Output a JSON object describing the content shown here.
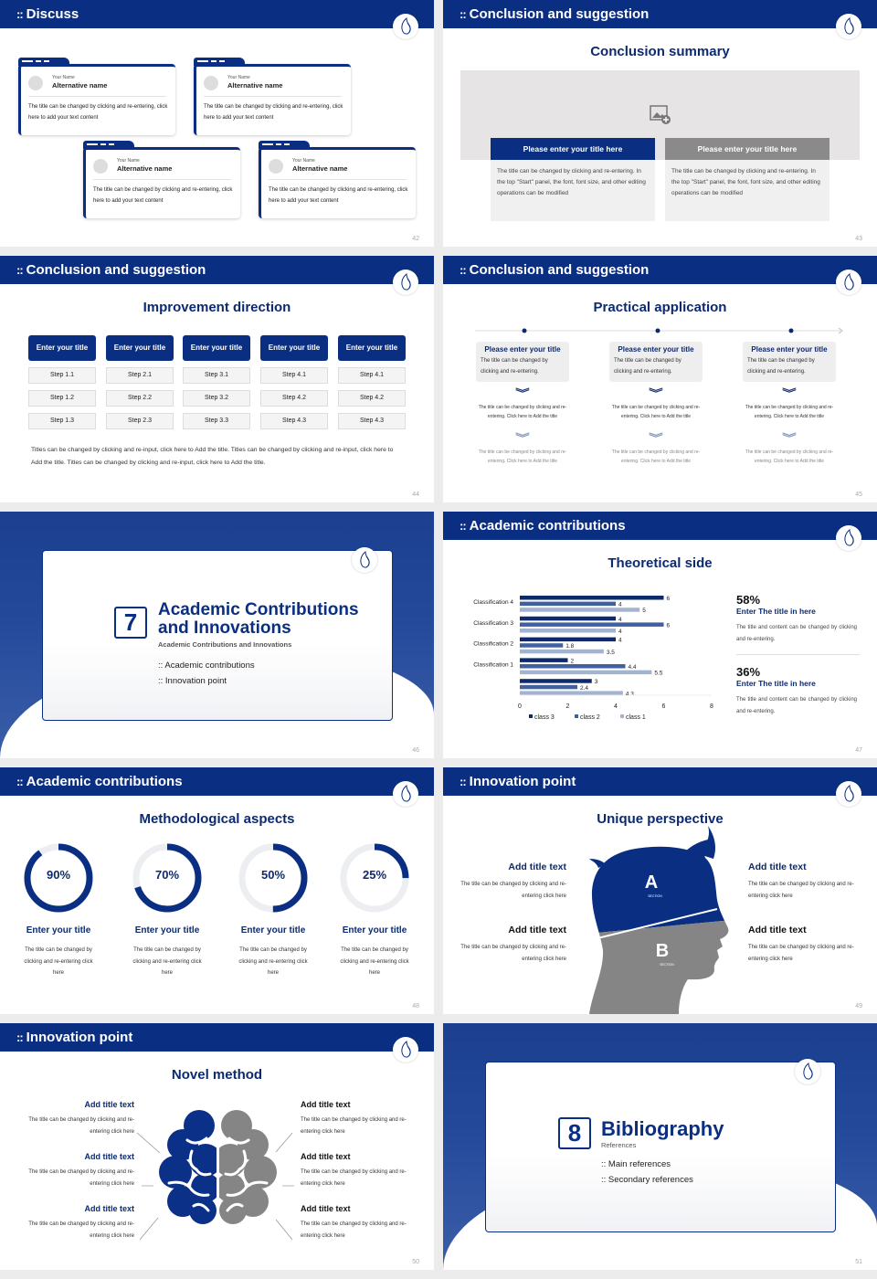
{
  "colors": {
    "primary": "#0a2f82",
    "gray": "#888888",
    "light": "#eeeeee"
  },
  "bullet_glyph": "::",
  "slides": {
    "s42": {
      "header": "Discuss",
      "page": "42",
      "cards": [
        {
          "name_label": "Your Name",
          "alt_name": "Alternative name",
          "text": "The title can be changed by clicking and re-entering, click here to add your text content"
        },
        {
          "name_label": "Your Name",
          "alt_name": "Alternative name",
          "text": "The title can be changed by clicking and re-entering, click here to add your text content"
        },
        {
          "name_label": "Your Name",
          "alt_name": "Alternative name",
          "text": "The title can be changed by clicking and re-entering, click here to add your text content"
        },
        {
          "name_label": "Your Name",
          "alt_name": "Alternative name",
          "text": "The title can be changed by clicking and re-entering, click here to add your text content"
        }
      ]
    },
    "s43": {
      "header": "Conclusion and suggestion",
      "title": "Conclusion summary",
      "page": "43",
      "image_icon": "image-placeholder-icon",
      "panels": [
        {
          "title": "Please enter your title here",
          "text": "The title can be changed by clicking and re-entering. In the top \"Start\" panel, the font, font size, and other editing operations can be modified"
        },
        {
          "title": "Please enter your title here",
          "text": "The title can be changed by clicking and re-entering. In the top \"Start\" panel, the font, font size, and other editing operations can be modified"
        }
      ]
    },
    "s44": {
      "header": "Conclusion and suggestion",
      "title": "Improvement direction",
      "page": "44",
      "columns": [
        {
          "title": "Enter your title",
          "steps": [
            "Step 1.1",
            "Step 1.2",
            "Step 1.3"
          ]
        },
        {
          "title": "Enter your title",
          "steps": [
            "Step 2.1",
            "Step 2.2",
            "Step 2.3"
          ]
        },
        {
          "title": "Enter your title",
          "steps": [
            "Step 3.1",
            "Step 3.2",
            "Step 3.3"
          ]
        },
        {
          "title": "Enter your title",
          "steps": [
            "Step 4.1",
            "Step 4.2",
            "Step 4.3"
          ]
        },
        {
          "title": "Enter your title",
          "steps": [
            "Step 4.1",
            "Step 4.2",
            "Step 4.3"
          ]
        }
      ],
      "paragraph": "Titles can be changed by clicking and re-input, click here to Add the title. Titles can be changed by clicking and re-input, click here to Add the title. Titles can be changed by clicking and re-input, click here to Add the title."
    },
    "s45": {
      "header": "Conclusion and suggestion",
      "title": "Practical application",
      "page": "45",
      "items": [
        {
          "title": "Please enter your title",
          "text": "The title can be changed by clicking and re-entering.",
          "step1": "The title can be changed by clicking and re-entering. Click here to Add the title",
          "step2": "The title can be changed by clicking and re-entering. Click here to Add the title"
        },
        {
          "title": "Please enter your title",
          "text": "The title can be changed by clicking and re-entering.",
          "step1": "The title can be changed by clicking and re-entering. Click here to Add the title",
          "step2": "The title can be changed by clicking and re-entering. Click here to Add the title"
        },
        {
          "title": "Please enter your title",
          "text": "The title can be changed by clicking and re-entering.",
          "step1": "The title can be changed by clicking and re-entering. Click here to Add the title",
          "step2": "The title can be changed by clicking and re-entering. Click here to Add the title"
        }
      ]
    },
    "s46": {
      "number": "7",
      "title_line1": "Academic Contributions",
      "title_line2": "and Innovations",
      "subtitle": "Academic Contributions and Innovations",
      "bullets": [
        "Academic contributions",
        "Innovation point"
      ],
      "page": "46"
    },
    "s47": {
      "header": "Academic contributions",
      "title": "Theoretical side",
      "page": "47",
      "stats": [
        {
          "value": "58%",
          "title": "Enter The title in here",
          "text": "The title and content can be changed by clicking and re-entering."
        },
        {
          "value": "36%",
          "title": "Enter The title in here",
          "text": "The title and content can be changed by clicking and re-entering."
        }
      ]
    },
    "s48": {
      "header": "Academic contributions",
      "title": "Methodological aspects",
      "page": "48",
      "gauges": [
        {
          "percent": 90,
          "label": "90%",
          "title": "Enter your title",
          "text": "The title can be changed by clicking and re-entering click here"
        },
        {
          "percent": 70,
          "label": "70%",
          "title": "Enter your title",
          "text": "The title can be changed by clicking and re-entering click here"
        },
        {
          "percent": 50,
          "label": "50%",
          "title": "Enter your title",
          "text": "The title can be changed by clicking and re-entering click here"
        },
        {
          "percent": 25,
          "label": "25%",
          "title": "Enter your title",
          "text": "The title can be changed by clicking and re-entering click here"
        }
      ]
    },
    "s49": {
      "header": "Innovation point",
      "title": "Unique perspective",
      "page": "49",
      "section_a": "A",
      "section_b": "B",
      "section_word": "SECTION",
      "blocks": [
        {
          "title": "Add title text",
          "text": "The title can be changed by clicking and re-entering click here"
        },
        {
          "title": "Add title text",
          "text": "The title can be changed by clicking and re-entering click here"
        },
        {
          "title": "Add title text",
          "text": "The title can be changed by clicking and re-entering click here"
        },
        {
          "title": "Add title text",
          "text": "The title can be changed by clicking and re-entering click here"
        }
      ]
    },
    "s50": {
      "header": "Innovation point",
      "title": "Novel method",
      "page": "50",
      "blocks": [
        {
          "title": "Add title text",
          "text": "The title can be changed by clicking and re-entering click here"
        },
        {
          "title": "Add title text",
          "text": "The title can be changed by clicking and re-entering click here"
        },
        {
          "title": "Add title text",
          "text": "The title can be changed by clicking and re-entering click here"
        },
        {
          "title": "Add title text",
          "text": "The title can be changed by clicking and re-entering click here"
        },
        {
          "title": "Add title text",
          "text": "The title can be changed by clicking and re-entering click here"
        },
        {
          "title": "Add title text",
          "text": "The title can be changed by clicking and re-entering click here"
        }
      ]
    },
    "s51": {
      "number": "8",
      "title": "Bibliography",
      "subtitle": "References",
      "bullets": [
        "Main references",
        "Secondary references"
      ],
      "page": "51"
    }
  },
  "chart_data": {
    "type": "bar",
    "orientation": "horizontal",
    "categories": [
      "Classification 4",
      "Classification 3",
      "Classification 2",
      "Classification 1",
      ""
    ],
    "series": [
      {
        "name": "class 3",
        "color": "#0d2a6b",
        "values": [
          6,
          4,
          4,
          2,
          3
        ]
      },
      {
        "name": "class 2",
        "color": "#4060a0",
        "values": [
          4,
          6,
          1.8,
          4.4,
          2.4
        ]
      },
      {
        "name": "class 1",
        "color": "#a3b3d2",
        "values": [
          5,
          4,
          3.5,
          5.5,
          4.3
        ]
      }
    ],
    "xlim": [
      0,
      8
    ],
    "xticks": [
      "0",
      "2",
      "4",
      "6",
      "8"
    ],
    "legend": "bottom",
    "data_labels": true,
    "grid": false
  }
}
